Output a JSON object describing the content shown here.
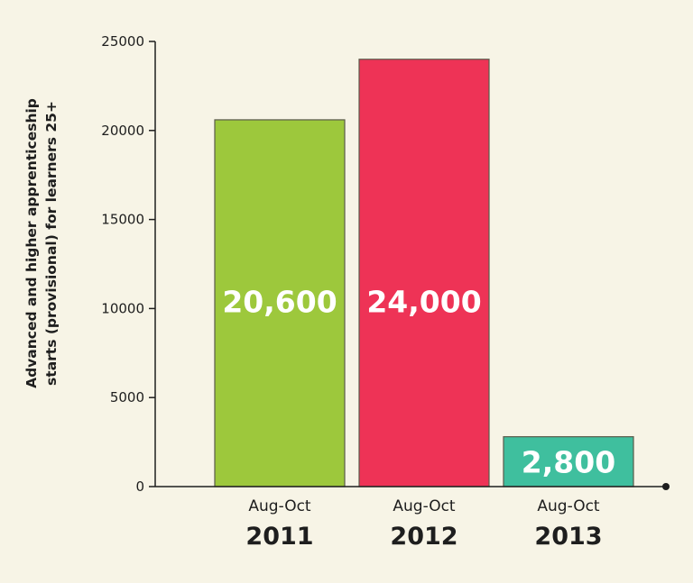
{
  "chart_data": {
    "type": "bar",
    "categories": [
      {
        "period": "Aug-Oct",
        "year": "2011"
      },
      {
        "period": "Aug-Oct",
        "year": "2012"
      },
      {
        "period": "Aug-Oct",
        "year": "2013"
      }
    ],
    "values": [
      20600,
      24000,
      2800
    ],
    "value_labels": [
      "20,600",
      "24,000",
      "2,800"
    ],
    "colors": [
      "#9dc83c",
      "#ee3356",
      "#3fbf9e"
    ],
    "ylabel": [
      "Advanced and higher apprenticeship",
      "starts (provisional) for learners 25+"
    ],
    "ylim": [
      0,
      25000
    ],
    "yticks": [
      0,
      5000,
      10000,
      15000,
      20000,
      25000
    ],
    "ytick_labels": [
      "0",
      "5000",
      "10000",
      "15000",
      "20000",
      "25000"
    ],
    "grid": false,
    "legend": "none"
  }
}
